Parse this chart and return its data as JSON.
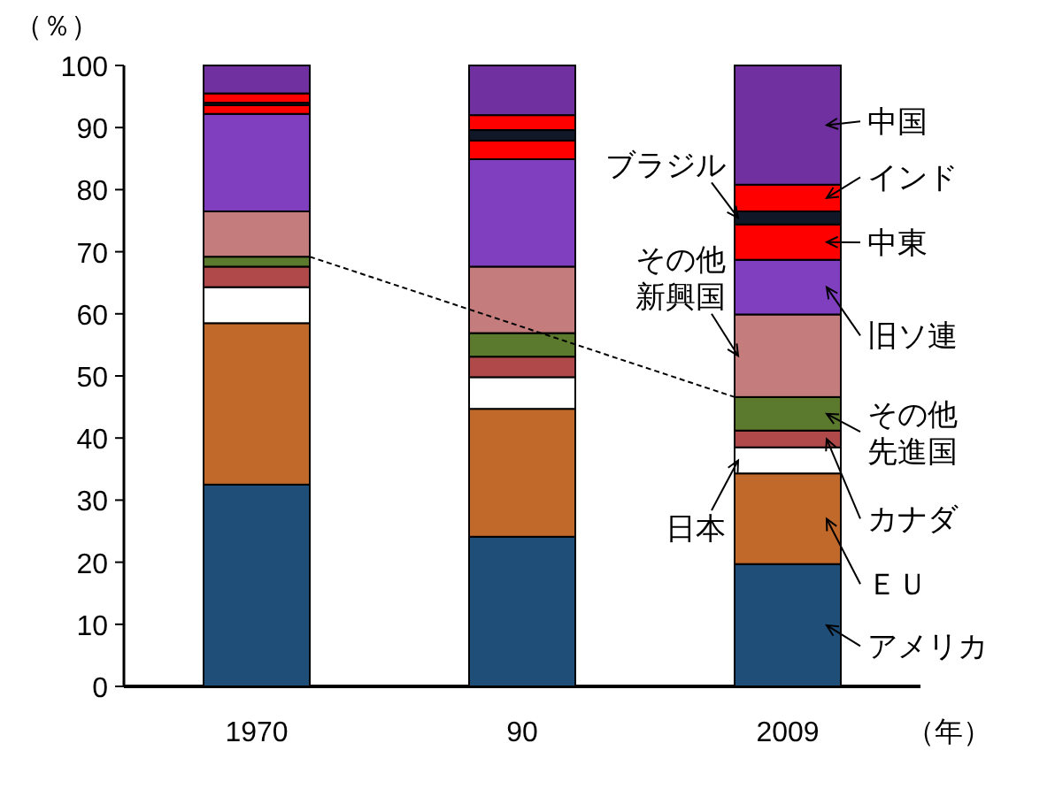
{
  "chart_data": {
    "type": "bar",
    "stacked": true,
    "ylabel": "（％）",
    "xlabel": "（年）",
    "categories": [
      "1970",
      "90",
      "2009"
    ],
    "legend": "right",
    "ylim": [
      0,
      100
    ],
    "yticks": [
      0,
      10,
      20,
      30,
      40,
      50,
      60,
      70,
      80,
      90,
      100
    ],
    "series": [
      {
        "name": "アメリカ",
        "color": "#1f4e79",
        "values": [
          32.5,
          24.1,
          19.7
        ]
      },
      {
        "name": "ＥＵ",
        "color": "#c0692a",
        "values": [
          26.0,
          20.6,
          14.6
        ]
      },
      {
        "name": "日本",
        "color": "#ffffff",
        "values": [
          5.8,
          5.1,
          4.2
        ]
      },
      {
        "name": "カナダ",
        "color": "#b04a4a",
        "values": [
          3.3,
          3.3,
          2.7
        ]
      },
      {
        "name": "その他先進国",
        "color": "#5b7a2e",
        "values": [
          1.6,
          3.8,
          5.4
        ]
      },
      {
        "name": "その他新興国",
        "color": "#c47c7c",
        "values": [
          7.3,
          10.7,
          13.3
        ]
      },
      {
        "name": "旧ソ連",
        "color": "#7f3fbf",
        "values": [
          15.7,
          17.3,
          8.8
        ]
      },
      {
        "name": "中東",
        "color": "#ff0000",
        "values": [
          1.4,
          3.0,
          5.7
        ]
      },
      {
        "name": "ブラジル",
        "color": "#101828",
        "values": [
          0.4,
          1.7,
          2.1
        ]
      },
      {
        "name": "インド",
        "color": "#ff0000",
        "values": [
          1.5,
          2.4,
          4.3
        ]
      },
      {
        "name": "中国",
        "color": "#7030a0",
        "values": [
          4.5,
          8.0,
          19.2
        ]
      }
    ]
  }
}
